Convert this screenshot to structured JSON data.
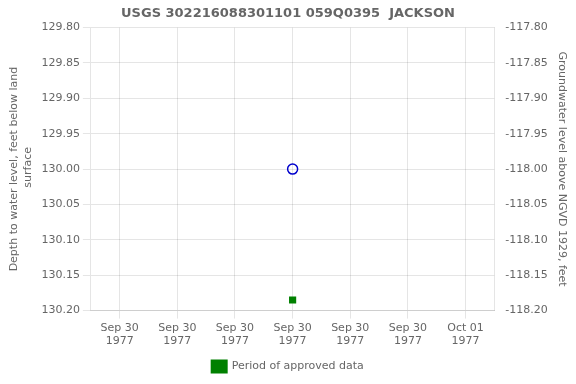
{
  "chart_data": {
    "type": "scatter",
    "title": "USGS 302216088301101 059Q0395  JACKSON",
    "y_label": "Depth to water level, feet below land\n surface",
    "y2_label": "Groundwater level above NGVD 1929, feet",
    "categories": [
      "Sep 30\n1977",
      "Sep 30\n1977",
      "Sep 30\n1977",
      "Sep 30\n1977",
      "Sep 30\n1977",
      "Sep 30\n1977",
      "Oct 01\n1977"
    ],
    "series": [
      {
        "color": "#0000cc",
        "marker": "open_circle",
        "values": [
          null,
          null,
          null,
          130.0,
          null,
          null,
          null
        ]
      },
      {
        "name": "Period of approved data",
        "color": "#008000",
        "marker": "square",
        "values": [
          null,
          null,
          null,
          130.185,
          null,
          null,
          null
        ]
      }
    ],
    "ylim": [
      130.2,
      129.8
    ],
    "yticks": [
      {
        "value": 129.8,
        "label": "129.80"
      },
      {
        "value": 129.85,
        "label": "129.85"
      },
      {
        "value": 129.9,
        "label": "129.90"
      },
      {
        "value": 129.95,
        "label": "129.95"
      },
      {
        "value": 130.0,
        "label": "130.00"
      },
      {
        "value": 130.05,
        "label": "130.05"
      },
      {
        "value": 130.1,
        "label": "130.10"
      },
      {
        "value": 130.15,
        "label": "130.15"
      },
      {
        "value": 130.2,
        "label": "130.20"
      }
    ],
    "y2lim": [
      -118.2,
      -117.8
    ],
    "y2ticks": [
      {
        "value": -117.8,
        "label": "-117.80"
      },
      {
        "value": -117.85,
        "label": "-117.85"
      },
      {
        "value": -117.9,
        "label": "-117.90"
      },
      {
        "value": -117.95,
        "label": "-117.95"
      },
      {
        "value": -118.0,
        "label": "-118.00"
      },
      {
        "value": -118.05,
        "label": "-118.05"
      },
      {
        "value": -118.1,
        "label": "-118.10"
      },
      {
        "value": -118.15,
        "label": "-118.15"
      },
      {
        "value": -118.2,
        "label": "-118.20"
      }
    ],
    "grid": true,
    "legend": "bottom"
  }
}
